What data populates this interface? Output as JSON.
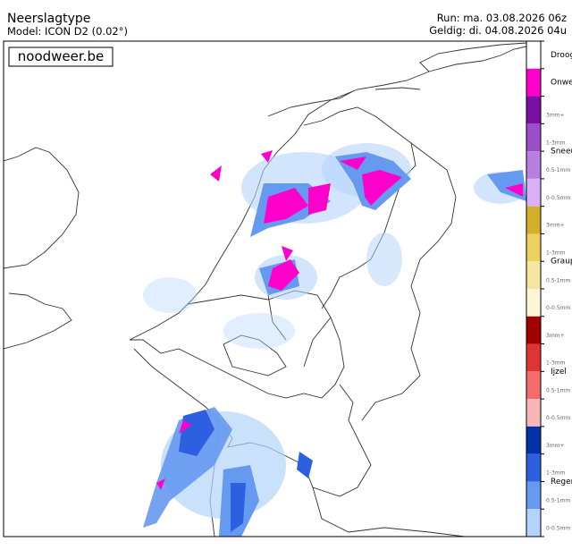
{
  "header": {
    "title": "Neerslagtype",
    "model": "Model: ICON D2 (0.02°)",
    "run": "Run: ma. 03.08.2026 06z",
    "valid": "Geldig: di. 04.08.2026 04u"
  },
  "logo": "noodweer.be",
  "legend": {
    "items": [
      {
        "label": "Droog",
        "color": "#ffffff"
      },
      {
        "label": "Onwe",
        "color": "#ff00cc"
      },
      {
        "label": "Sneeu",
        "levels": [
          {
            "label": "3mm+",
            "color": "#7a0ea6"
          },
          {
            "label": "1-3mm",
            "color": "#9a4ec8"
          },
          {
            "label": "0.5-1mm",
            "color": "#b97fe0"
          },
          {
            "label": "0-0.5mm",
            "color": "#dcb0f5"
          }
        ]
      },
      {
        "label": "Graup",
        "levels": [
          {
            "label": "3mm+",
            "color": "#d4b02a"
          },
          {
            "label": "1-3mm",
            "color": "#ecd060"
          },
          {
            "label": "0.5-1mm",
            "color": "#f7e6a0"
          },
          {
            "label": "0-0.5mm",
            "color": "#fdf7d8"
          }
        ]
      },
      {
        "label": "Ijzel",
        "levels": [
          {
            "label": "3mm+",
            "color": "#a00000"
          },
          {
            "label": "1-3mm",
            "color": "#e03434"
          },
          {
            "label": "0.5-1mm",
            "color": "#f56a6a"
          },
          {
            "label": "0-0.5mm",
            "color": "#f8b6b6"
          }
        ]
      },
      {
        "label": "Regen",
        "levels": [
          {
            "label": "3mm+",
            "color": "#0033aa"
          },
          {
            "label": "1-3mm",
            "color": "#2c60e0"
          },
          {
            "label": "0.5-1mm",
            "color": "#6699f0"
          },
          {
            "label": "0-0.5mm",
            "color": "#b4d4fb"
          }
        ]
      }
    ]
  }
}
